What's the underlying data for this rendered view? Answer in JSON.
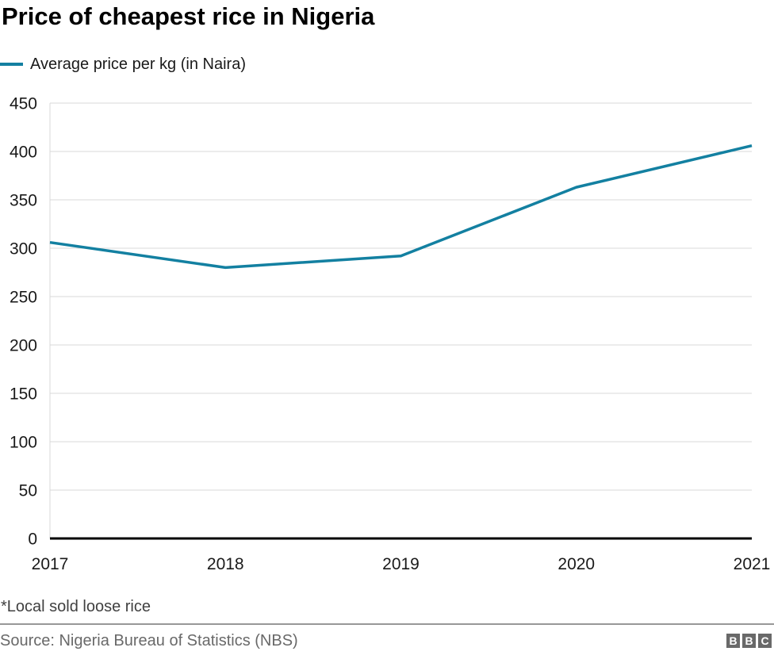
{
  "title": "Price of cheapest rice in Nigeria",
  "legend": {
    "label": "Average price per kg (in Naira)",
    "swatch_color": "#1380a1"
  },
  "footnote": "*Local sold loose rice",
  "source": "Source: Nigeria Bureau of Statistics (NBS)",
  "logo": {
    "letters": [
      "B",
      "B",
      "C"
    ],
    "color": "#696969"
  },
  "chart_data": {
    "type": "line",
    "title": "Price of cheapest rice in Nigeria",
    "categories": [
      "2017",
      "2018",
      "2019",
      "2020",
      "2021"
    ],
    "series": [
      {
        "name": "Average price per kg (in Naira)",
        "values": [
          306,
          280,
          292,
          363,
          406
        ],
        "color": "#1380a1"
      }
    ],
    "ylim": [
      0,
      450
    ],
    "ytick_step": 50,
    "xlabel": "",
    "ylabel": "Average price per kg (in Naira)",
    "grid": "horizontal",
    "legend_position": "top-left",
    "gridline_color": "#d9d9d9",
    "axis_color": "#000000",
    "tick_label_color": "#1a1a1a"
  }
}
